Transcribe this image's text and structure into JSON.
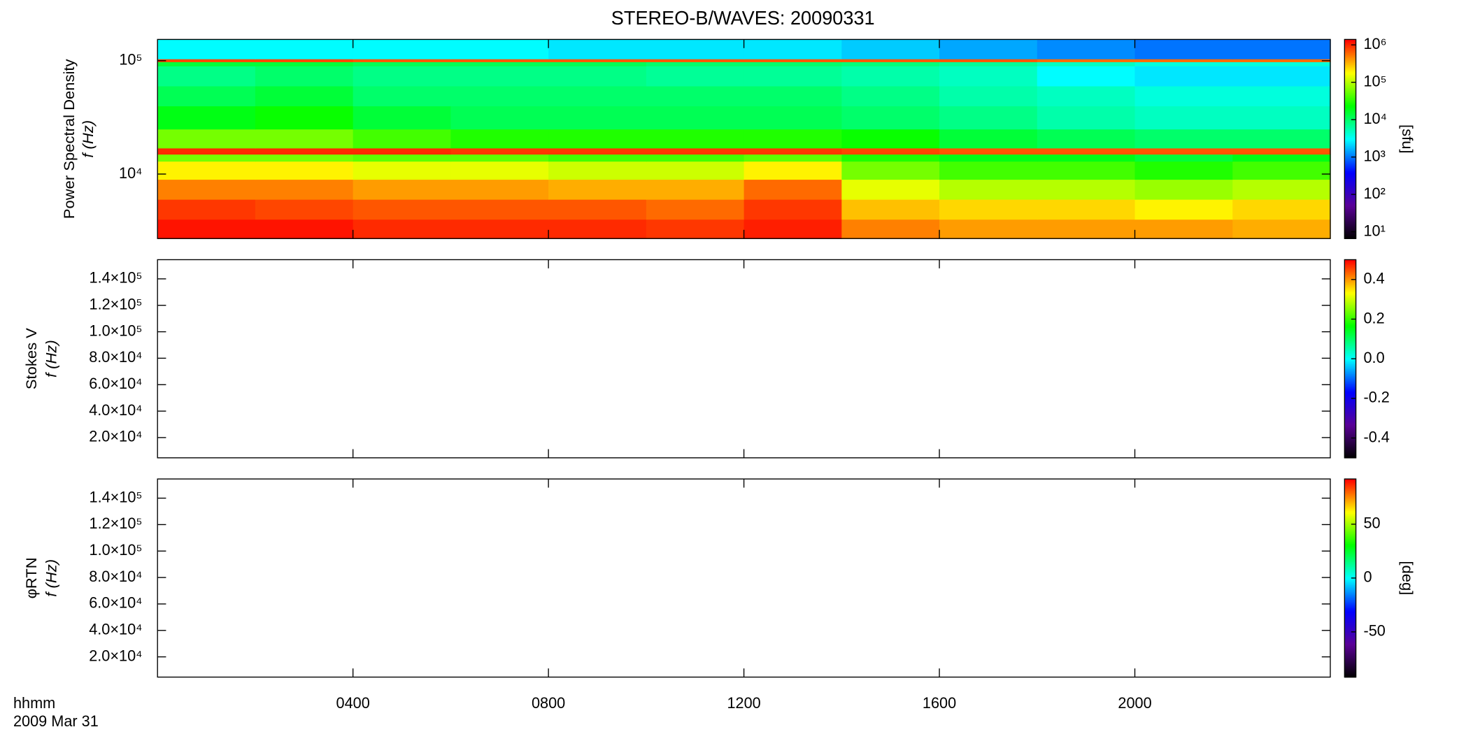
{
  "chart_data": [
    {
      "type": "heatmap",
      "title": "STEREO-B/WAVES: 20090331",
      "ylabel": "Power Spectral Density",
      "ylabel2": "f (Hz)",
      "zlabel": "[sfu]",
      "xlim": [
        0,
        24
      ],
      "ylim": [
        2700,
        154000
      ],
      "ylog": true,
      "yticks": [
        {
          "value": 10000,
          "label": "10⁴"
        },
        {
          "value": 100000,
          "label": "10⁵"
        }
      ],
      "x_bins": [
        0,
        2,
        4,
        6,
        8,
        10,
        12,
        14,
        16,
        18,
        20,
        22,
        24
      ],
      "y_bins": [
        2700,
        4000,
        6000,
        9000,
        13000,
        15000,
        17000,
        25000,
        40000,
        60000,
        90000,
        98000,
        104000,
        154000
      ],
      "z": [
        [
          1200000,
          1200000,
          1000000,
          1000000,
          1000000,
          900000,
          1100000,
          500000,
          400000,
          400000,
          400000,
          350000
        ],
        [
          900000,
          800000,
          700000,
          700000,
          700000,
          600000,
          900000,
          300000,
          250000,
          250000,
          200000,
          250000
        ],
        [
          500000,
          500000,
          400000,
          400000,
          350000,
          350000,
          600000,
          150000,
          100000,
          100000,
          80000,
          100000
        ],
        [
          200000,
          200000,
          150000,
          150000,
          120000,
          120000,
          200000,
          60000,
          40000,
          40000,
          30000,
          40000
        ],
        [
          60000,
          60000,
          50000,
          50000,
          40000,
          40000,
          50000,
          30000,
          20000,
          20000,
          15000,
          20000
        ],
        [
          1000000,
          1000000,
          1000000,
          900000,
          900000,
          900000,
          900000,
          800000,
          700000,
          700000,
          700000,
          700000
        ],
        [
          60000,
          60000,
          40000,
          30000,
          30000,
          30000,
          30000,
          25000,
          15000,
          12000,
          10000,
          10000
        ],
        [
          20000,
          25000,
          15000,
          12000,
          12000,
          12000,
          12000,
          10000,
          8000,
          6000,
          5000,
          5000
        ],
        [
          12000,
          15000,
          10000,
          10000,
          10000,
          10000,
          10000,
          8000,
          6000,
          5000,
          4000,
          4000
        ],
        [
          8000,
          10000,
          8000,
          8000,
          8000,
          7000,
          7000,
          6000,
          5000,
          3000,
          2500,
          2500
        ],
        [
          15000,
          15000,
          12000,
          12000,
          12000,
          10000,
          10000,
          9000,
          7000,
          5000,
          4000,
          4000
        ],
        [
          800000,
          800000,
          700000,
          700000,
          700000,
          700000,
          700000,
          700000,
          700000,
          600000,
          600000,
          600000
        ],
        [
          3000,
          3000,
          3000,
          3000,
          2500,
          2500,
          2500,
          2000,
          1500,
          1200,
          1000,
          1000
        ]
      ],
      "zlim": [
        6.6,
        1400000
      ],
      "zlog": true,
      "zticks": [
        {
          "value": 10,
          "label": "10¹"
        },
        {
          "value": 100,
          "label": "10²"
        },
        {
          "value": 1000,
          "label": "10³"
        },
        {
          "value": 10000,
          "label": "10⁴"
        },
        {
          "value": 100000,
          "label": "10⁵"
        },
        {
          "value": 1000000,
          "label": "10⁶"
        }
      ],
      "colormap": [
        "#000000",
        "#5a0096",
        "#0000ff",
        "#00ffff",
        "#00ff00",
        "#ffff00",
        "#ff0000"
      ]
    },
    {
      "type": "heatmap",
      "ylabel": "Stokes V",
      "ylabel2": "f (Hz)",
      "xlim": [
        0,
        24
      ],
      "ylim": [
        4700,
        154500
      ],
      "yticks": [
        {
          "value": 20000,
          "label": "2.0×10⁴"
        },
        {
          "value": 40000,
          "label": "4.0×10⁴"
        },
        {
          "value": 60000,
          "label": "6.0×10⁴"
        },
        {
          "value": 80000,
          "label": "8.0×10⁴"
        },
        {
          "value": 100000,
          "label": "1.0×10⁵"
        },
        {
          "value": 120000,
          "label": "1.2×10⁵"
        },
        {
          "value": 140000,
          "label": "1.4×10⁵"
        }
      ],
      "zlim": [
        -0.5,
        0.5
      ],
      "zticks": [
        -0.4,
        -0.2,
        {
          "value": 0,
          "label": "0.0"
        },
        0.2,
        0.4
      ],
      "colormap": [
        "#000000",
        "#5a0096",
        "#0000ff",
        "#00ffff",
        "#00ff00",
        "#ffff00",
        "#ff0000"
      ]
    },
    {
      "type": "heatmap",
      "ylabel": "φRTN",
      "ylabel2": "f (Hz)",
      "zlabel": "[deg]",
      "xlim": [
        0,
        24
      ],
      "ylim": [
        4700,
        154500
      ],
      "yticks": [
        {
          "value": 20000,
          "label": "2.0×10⁴"
        },
        {
          "value": 40000,
          "label": "4.0×10⁴"
        },
        {
          "value": 60000,
          "label": "6.0×10⁴"
        },
        {
          "value": 80000,
          "label": "8.0×10⁴"
        },
        {
          "value": 100000,
          "label": "1.0×10⁵"
        },
        {
          "value": 120000,
          "label": "1.2×10⁵"
        },
        {
          "value": 140000,
          "label": "1.4×10⁵"
        }
      ],
      "xticks": [
        {
          "value": 4,
          "label": "0400"
        },
        {
          "value": 8,
          "label": "0800"
        },
        {
          "value": 12,
          "label": "1200"
        },
        {
          "value": 16,
          "label": "1600"
        },
        {
          "value": 20,
          "label": "2000"
        }
      ],
      "xlabel": "hhmm",
      "date": "2009 Mar 31",
      "zlim": [
        -92,
        92
      ],
      "zticks": [
        -50,
        0,
        50
      ],
      "colormap": [
        "#000000",
        "#5a0096",
        "#0000ff",
        "#00ffff",
        "#00ff00",
        "#ffff00",
        "#ff0000"
      ]
    }
  ]
}
